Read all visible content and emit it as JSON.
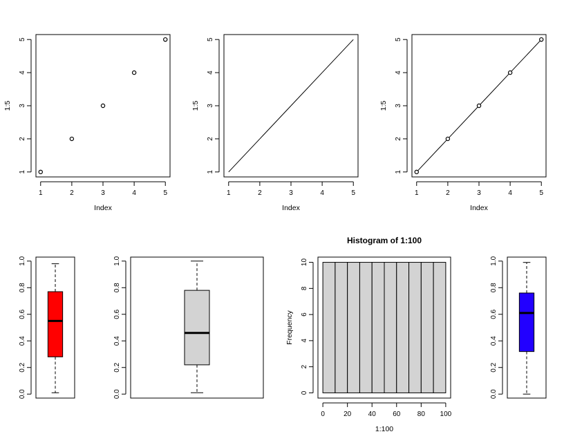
{
  "chart_data": [
    {
      "type": "scatter",
      "style": "points",
      "x": [
        1,
        2,
        3,
        4,
        5
      ],
      "y": [
        1,
        2,
        3,
        4,
        5
      ],
      "xlabel": "Index",
      "ylabel": "1:5",
      "xticks": [
        "1",
        "2",
        "3",
        "4",
        "5"
      ],
      "yticks": [
        "1",
        "2",
        "3",
        "4",
        "5"
      ],
      "xlim": [
        1,
        5
      ],
      "ylim": [
        1,
        5
      ]
    },
    {
      "type": "line",
      "style": "line",
      "x": [
        1,
        2,
        3,
        4,
        5
      ],
      "y": [
        1,
        2,
        3,
        4,
        5
      ],
      "xlabel": "Index",
      "ylabel": "1:5",
      "xticks": [
        "1",
        "2",
        "3",
        "4",
        "5"
      ],
      "yticks": [
        "1",
        "2",
        "3",
        "4",
        "5"
      ],
      "xlim": [
        1,
        5
      ],
      "ylim": [
        1,
        5
      ]
    },
    {
      "type": "line",
      "style": "line+points",
      "x": [
        1,
        2,
        3,
        4,
        5
      ],
      "y": [
        1,
        2,
        3,
        4,
        5
      ],
      "xlabel": "Index",
      "ylabel": "1:5",
      "xticks": [
        "1",
        "2",
        "3",
        "4",
        "5"
      ],
      "yticks": [
        "1",
        "2",
        "3",
        "4",
        "5"
      ],
      "xlim": [
        1,
        5
      ],
      "ylim": [
        1,
        5
      ]
    },
    {
      "type": "boxplot",
      "min": 0.01,
      "q1": 0.28,
      "median": 0.55,
      "q3": 0.77,
      "max": 0.98,
      "fill": "#ff0000",
      "yticks": [
        "0.0",
        "0.2",
        "0.4",
        "0.6",
        "0.8",
        "1.0"
      ],
      "ylim": [
        0,
        1
      ]
    },
    {
      "type": "boxplot",
      "min": 0.01,
      "q1": 0.22,
      "median": 0.46,
      "q3": 0.78,
      "max": 1.0,
      "fill": "#d3d3d3",
      "yticks": [
        "0.0",
        "0.2",
        "0.4",
        "0.6",
        "0.8",
        "1.0"
      ],
      "ylim": [
        0,
        1
      ]
    },
    {
      "type": "bar",
      "subtype": "histogram",
      "title": "Histogram of 1:100",
      "xlabel": "1:100",
      "ylabel": "Frequency",
      "bins": [
        [
          0,
          10
        ],
        [
          10,
          20
        ],
        [
          20,
          30
        ],
        [
          30,
          40
        ],
        [
          40,
          50
        ],
        [
          50,
          60
        ],
        [
          60,
          70
        ],
        [
          70,
          80
        ],
        [
          80,
          90
        ],
        [
          90,
          100
        ]
      ],
      "values": [
        10,
        10,
        10,
        10,
        10,
        10,
        10,
        10,
        10,
        10
      ],
      "fill": "#d3d3d3",
      "xticks": [
        "0",
        "20",
        "40",
        "60",
        "80",
        "100"
      ],
      "yticks": [
        "0",
        "2",
        "4",
        "6",
        "8",
        "10"
      ],
      "xlim": [
        0,
        100
      ],
      "ylim": [
        0,
        10
      ]
    },
    {
      "type": "boxplot",
      "min": 0.0,
      "q1": 0.32,
      "median": 0.61,
      "q3": 0.76,
      "max": 0.99,
      "fill": "#2200ff",
      "yticks": [
        "0.0",
        "0.2",
        "0.4",
        "0.6",
        "0.8",
        "1.0"
      ],
      "ylim": [
        0,
        1
      ]
    }
  ]
}
